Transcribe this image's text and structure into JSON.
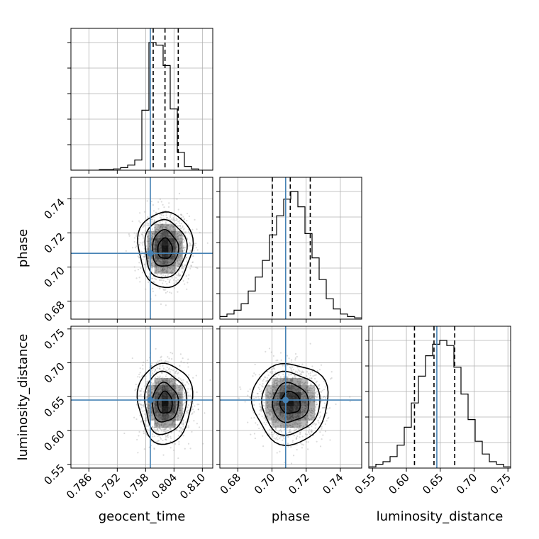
{
  "chart_data": {
    "type": "corner",
    "parameters": [
      "geocent_time",
      "phase",
      "luminosity_distance"
    ],
    "axis_labels": {
      "x": [
        "geocent_time",
        "phase",
        "luminosity_distance"
      ],
      "y": [
        "phase",
        "luminosity_distance"
      ]
    },
    "ranges": {
      "geocent_time": [
        0.7822,
        0.8122
      ],
      "phase": [
        0.6695,
        0.7525
      ],
      "luminosity_distance": [
        0.5445,
        0.754
      ]
    },
    "ticks": {
      "geocent_time": {
        "values": [
          0.786,
          0.792,
          0.798,
          0.804,
          0.81
        ],
        "labels": [
          "0.786",
          "0.792",
          "0.798",
          "0.804",
          "0.810"
        ]
      },
      "phase": {
        "values": [
          0.68,
          0.7,
          0.72,
          0.74
        ],
        "labels": [
          "0.68",
          "0.70",
          "0.72",
          "0.74"
        ]
      },
      "luminosity_distance": {
        "values": [
          0.55,
          0.6,
          0.65,
          0.7,
          0.75
        ],
        "labels": [
          "0.55",
          "0.60",
          "0.65",
          "0.70",
          "0.75"
        ]
      }
    },
    "y_axis_ticks": {
      "phase": {
        "values": [
          0.68,
          0.7,
          0.72,
          0.74
        ],
        "labels": [
          "0.68",
          "0.70",
          "0.72",
          "0.74"
        ]
      },
      "luminosity_distance": {
        "values": [
          0.55,
          0.6,
          0.65,
          0.7,
          0.75
        ],
        "labels": [
          "0.55",
          "0.60",
          "0.65",
          "0.70",
          "0.75"
        ]
      }
    },
    "truths": {
      "geocent_time": 0.799,
      "phase": 0.708,
      "luminosity_distance": 0.645
    },
    "quantiles": {
      "geocent_time": [
        0.7996,
        0.8021,
        0.8049
      ],
      "phase": [
        0.7002,
        0.7107,
        0.7224
      ],
      "luminosity_distance": [
        0.612,
        0.6408,
        0.6714
      ]
    },
    "histograms": {
      "geocent_time": {
        "bin_start": 0.7822,
        "bin_width": 0.0015,
        "counts": [
          0,
          0,
          0,
          0,
          0.005,
          0.005,
          0.01,
          0.02,
          0.04,
          0.08,
          0.47,
          1.0,
          0.98,
          0.82,
          0.48,
          0.14,
          0.03,
          0.01,
          0.0,
          0.0
        ]
      },
      "phase": {
        "bin_start": 0.6695,
        "bin_width": 0.00415,
        "counts": [
          0.02,
          0.04,
          0.07,
          0.12,
          0.22,
          0.33,
          0.46,
          0.66,
          0.81,
          0.94,
          1.0,
          0.88,
          0.67,
          0.48,
          0.31,
          0.16,
          0.08,
          0.04,
          0.02,
          0.01
        ]
      },
      "luminosity_distance": {
        "bin_start": 0.5445,
        "bin_width": 0.010475,
        "counts": [
          0.01,
          0.03,
          0.05,
          0.09,
          0.18,
          0.32,
          0.51,
          0.72,
          0.88,
          0.97,
          1.0,
          0.96,
          0.79,
          0.58,
          0.38,
          0.21,
          0.11,
          0.05,
          0.03,
          0.01
        ]
      }
    },
    "posterior": {
      "means": {
        "geocent_time": 0.8021,
        "phase": 0.7107,
        "luminosity_distance": 0.6408
      },
      "sigmas": {
        "geocent_time": 0.0022,
        "phase": 0.0085,
        "luminosity_distance": 0.023
      }
    },
    "grid": true,
    "colors": {
      "truth": "#4682b4",
      "contour": "#000000",
      "density": "#000000",
      "scatter": "#9a9a9a",
      "grid": "#b0b0b0",
      "quantile": "#000000"
    }
  }
}
